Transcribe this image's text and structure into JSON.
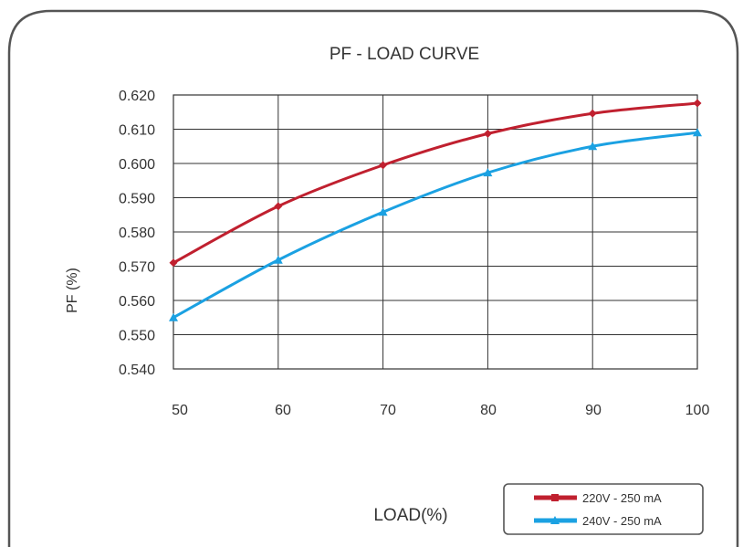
{
  "chart_data": {
    "type": "line",
    "title": "PF - LOAD CURVE",
    "xlabel": "LOAD(%)",
    "ylabel": "PF (%)",
    "x": [
      50,
      60,
      70,
      80,
      90,
      100
    ],
    "x_ticks": [
      "50",
      "60",
      "70",
      "80",
      "90",
      "100"
    ],
    "y_ticks": [
      "0.620",
      "0.610",
      "0.600",
      "0.590",
      "0.580",
      "0.570",
      "0.560",
      "0.550",
      "0.540"
    ],
    "xlim": [
      50,
      100
    ],
    "ylim": [
      0.54,
      0.62
    ],
    "grid": true,
    "legend_position": "bottom-right",
    "series": [
      {
        "name": "220V - 250 mA",
        "color": "#C0202F",
        "marker": "diamond",
        "values": [
          0.571,
          0.5875,
          0.5995,
          0.6087,
          0.6146,
          0.6176
        ]
      },
      {
        "name": "240V - 250 mA",
        "color": "#1BA1E2",
        "marker": "triangle",
        "values": [
          0.555,
          0.5718,
          0.5858,
          0.5973,
          0.605,
          0.609
        ]
      }
    ]
  }
}
